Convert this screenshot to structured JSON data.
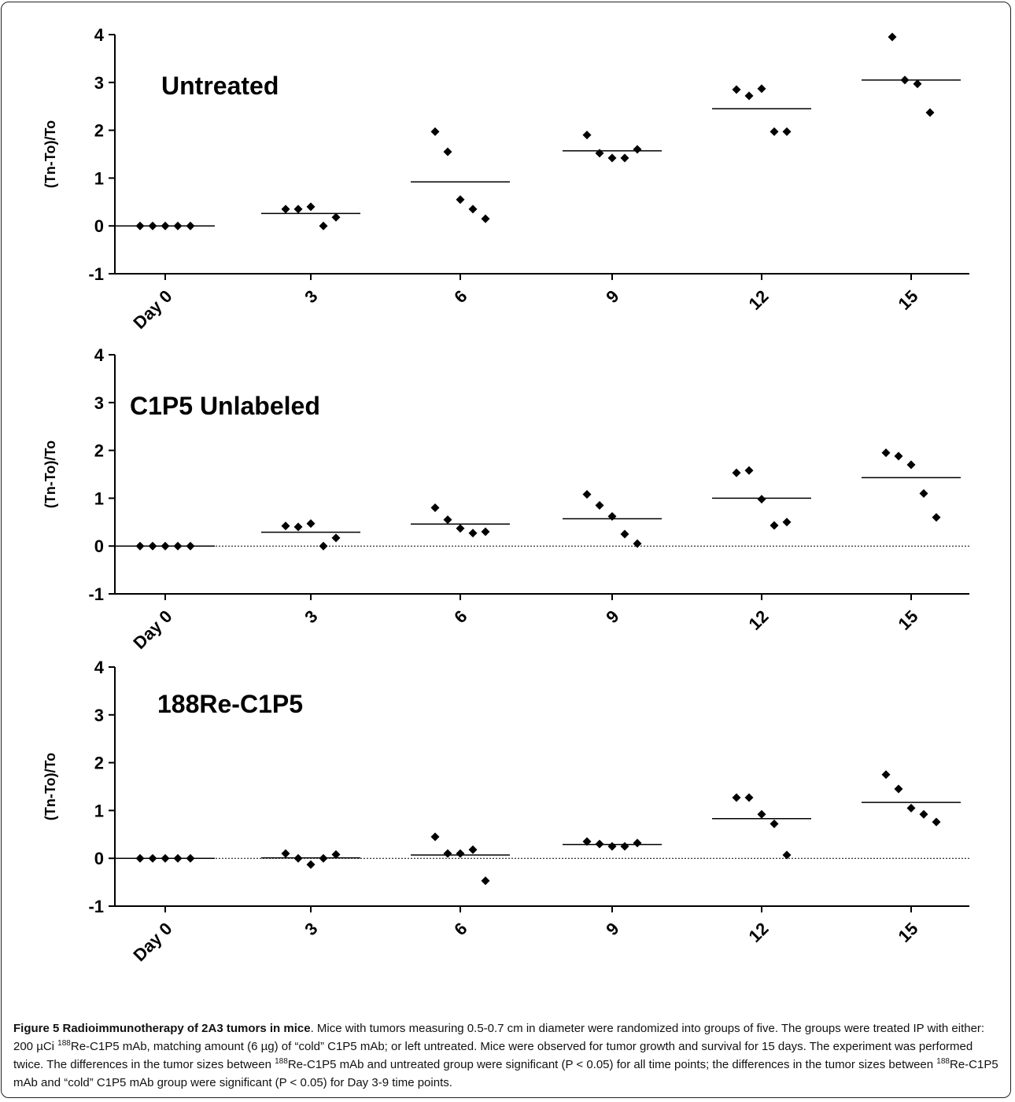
{
  "chart_data": [
    {
      "type": "scatter",
      "title": "Untreated",
      "ylabel": "(Tn-To)/To",
      "xlabel": "",
      "categories": [
        "Day 0",
        "3",
        "6",
        "9",
        "12",
        "15"
      ],
      "ylim": [
        -1,
        4
      ],
      "yticks": [
        "4",
        "3",
        "2",
        "1",
        "0",
        "-1"
      ],
      "points": [
        [
          0,
          0,
          0,
          0,
          0
        ],
        [
          0.35,
          0.35,
          0.4,
          0.0,
          0.18
        ],
        [
          1.97,
          1.55,
          0.55,
          0.35,
          0.15
        ],
        [
          1.9,
          1.52,
          1.42,
          1.42,
          1.6
        ],
        [
          2.85,
          2.72,
          2.87,
          1.97,
          1.97
        ],
        [
          3.95,
          3.05,
          2.97,
          2.37
        ]
      ],
      "means": [
        0,
        0.26,
        0.92,
        1.57,
        2.45,
        3.05
      ],
      "zero_reference_line": false
    },
    {
      "type": "scatter",
      "title": "C1P5  Unlabeled",
      "ylabel": "(Tn-To)/To",
      "xlabel": "",
      "categories": [
        "Day 0",
        "3",
        "6",
        "9",
        "12",
        "15"
      ],
      "ylim": [
        -1,
        4
      ],
      "yticks": [
        "4",
        "3",
        "2",
        "1",
        "0",
        "-1"
      ],
      "points": [
        [
          0,
          0,
          0,
          0,
          0
        ],
        [
          0.42,
          0.4,
          0.47,
          0.0,
          0.17
        ],
        [
          0.8,
          0.55,
          0.37,
          0.27,
          0.3
        ],
        [
          1.08,
          0.85,
          0.62,
          0.25,
          0.05
        ],
        [
          1.53,
          1.58,
          0.98,
          0.43,
          0.5
        ],
        [
          1.95,
          1.88,
          1.7,
          1.1,
          0.6
        ]
      ],
      "means": [
        0,
        0.29,
        0.46,
        0.57,
        1.0,
        1.43
      ],
      "zero_reference_line": true
    },
    {
      "type": "scatter",
      "title": "188Re-C1P5",
      "ylabel": "(Tn-To)/To",
      "xlabel": "",
      "categories": [
        "Day 0",
        "3",
        "6",
        "9",
        "12",
        "15"
      ],
      "ylim": [
        -1,
        4
      ],
      "yticks": [
        "4",
        "3",
        "2",
        "1",
        "0",
        "-1"
      ],
      "points": [
        [
          0,
          0,
          0,
          0,
          0
        ],
        [
          0.1,
          0.0,
          -0.13,
          0.0,
          0.08
        ],
        [
          0.45,
          0.1,
          0.1,
          0.18,
          -0.47
        ],
        [
          0.35,
          0.3,
          0.25,
          0.25,
          0.32
        ],
        [
          1.27,
          1.27,
          0.92,
          0.72,
          0.07
        ],
        [
          1.75,
          1.45,
          1.05,
          0.92,
          0.76
        ]
      ],
      "means": [
        0,
        0.01,
        0.07,
        0.29,
        0.83,
        1.17
      ],
      "zero_reference_line": true
    }
  ],
  "caption": {
    "figure_label": "Figure 5 Radioimmunotherapy of 2A3 tumors in mice",
    "text_1": ". Mice with tumors measuring 0.5-0.7 cm in diameter were randomized into groups of five. The groups were treated IP with either: 200 µCi ",
    "sup_1": "188",
    "text_2": "Re-C1P5 mAb, matching amount (6 µg) of “cold” C1P5 mAb; or left untreated. Mice were observed for tumor growth and survival for 15 days. The experiment was performed twice. The differences in the tumor sizes between ",
    "sup_2": "188",
    "text_3": "Re-C1P5 mAb and untreated group were significant (P < 0.05) for all time points; the differences in the tumor sizes between ",
    "sup_3": "188",
    "text_4": "Re-C1P5 mAb and “cold” C1P5 mAb group were significant (P < 0.05) for Day 3-9 time points."
  }
}
